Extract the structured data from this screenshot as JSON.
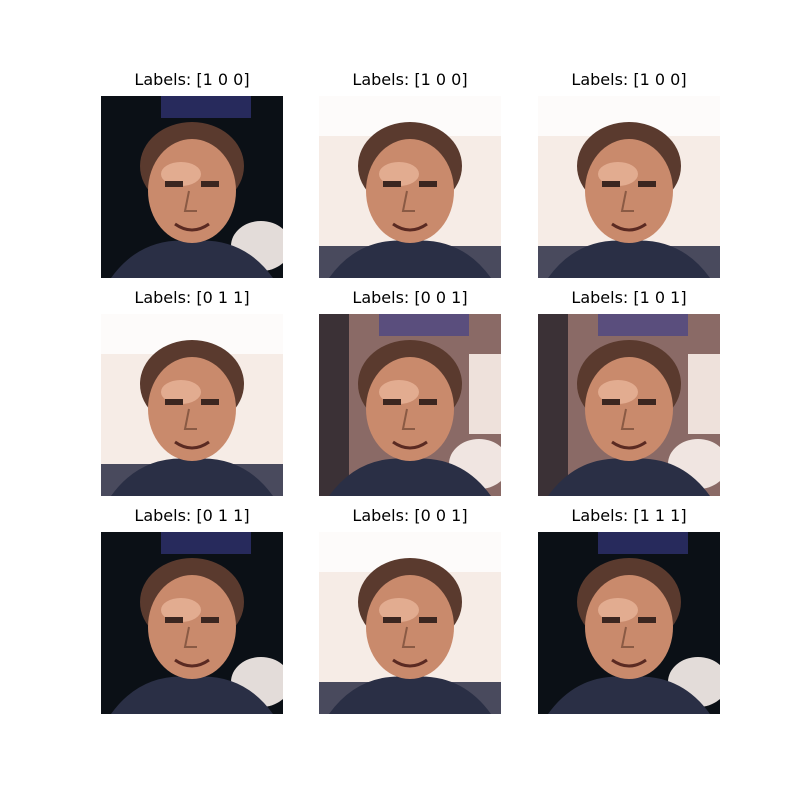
{
  "grid": {
    "rows": 3,
    "cols": 3,
    "samples": [
      {
        "title": "Labels: [1 0 0]",
        "labels": [
          1,
          0,
          0
        ],
        "bg": "dark"
      },
      {
        "title": "Labels: [1 0 0]",
        "labels": [
          1,
          0,
          0
        ],
        "bg": "light"
      },
      {
        "title": "Labels: [1 0 0]",
        "labels": [
          1,
          0,
          0
        ],
        "bg": "light"
      },
      {
        "title": "Labels: [0 1 1]",
        "labels": [
          0,
          1,
          1
        ],
        "bg": "light"
      },
      {
        "title": "Labels: [0 0 1]",
        "labels": [
          0,
          0,
          1
        ],
        "bg": "mixed"
      },
      {
        "title": "Labels: [1 0 1]",
        "labels": [
          1,
          0,
          1
        ],
        "bg": "mixed"
      },
      {
        "title": "Labels: [0 1 1]",
        "labels": [
          0,
          1,
          1
        ],
        "bg": "dark"
      },
      {
        "title": "Labels: [0 0 1]",
        "labels": [
          0,
          0,
          1
        ],
        "bg": "light"
      },
      {
        "title": "Labels: [1 1 1]",
        "labels": [
          1,
          1,
          1
        ],
        "bg": "dark"
      }
    ]
  },
  "colors": {
    "background": "#ffffff",
    "dark_bg": "#0b1016",
    "light_bg": "#f6ece6",
    "skin": "#c98a6c",
    "blue_tint": "#3a3c8c"
  }
}
